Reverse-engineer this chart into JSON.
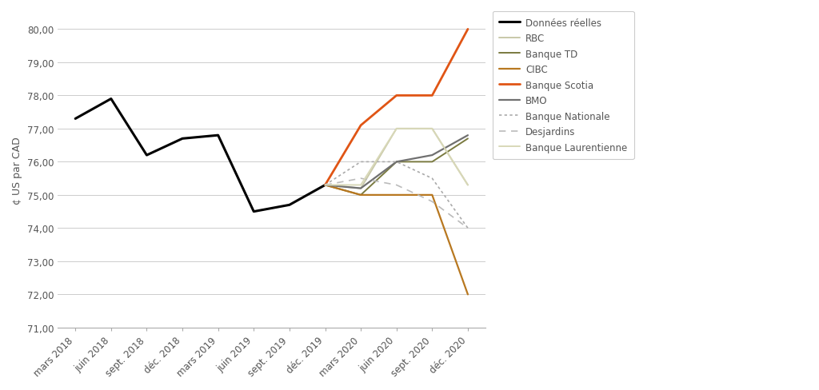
{
  "ylabel": "¢ US par CAD",
  "ylim": [
    71.0,
    80.5
  ],
  "yticks": [
    71.0,
    72.0,
    73.0,
    74.0,
    75.0,
    76.0,
    77.0,
    78.0,
    79.0,
    80.0
  ],
  "x_labels": [
    "mars 2018",
    "juin 2018",
    "sept. 2018",
    "déc. 2018",
    "mars 2019",
    "juin 2019",
    "sept. 2019",
    "déc. 2019",
    "mars 2020",
    "juin 2020",
    "sept. 2020",
    "déc. 2020"
  ],
  "series": {
    "Données réelles": {
      "color": "#000000",
      "linewidth": 2.2,
      "linestyle": "solid",
      "x": [
        0,
        1,
        2,
        3,
        4,
        5,
        6,
        7
      ],
      "y": [
        77.3,
        77.9,
        76.2,
        76.7,
        76.8,
        74.5,
        74.7,
        75.3
      ]
    },
    "RBC": {
      "color": "#c8c8a8",
      "linewidth": 1.4,
      "linestyle": "solid",
      "x": [
        7,
        8,
        9,
        10,
        11
      ],
      "y": [
        75.3,
        75.2,
        77.0,
        77.0,
        75.3
      ]
    },
    "Banque TD": {
      "color": "#7a7a40",
      "linewidth": 1.4,
      "linestyle": "solid",
      "x": [
        7,
        8,
        9,
        10,
        11
      ],
      "y": [
        75.3,
        75.0,
        76.0,
        76.0,
        76.7
      ]
    },
    "CIBC": {
      "color": "#b87820",
      "linewidth": 1.6,
      "linestyle": "solid",
      "x": [
        7,
        8,
        9,
        10,
        11
      ],
      "y": [
        75.3,
        75.0,
        75.0,
        75.0,
        72.0
      ]
    },
    "Banque Scotia": {
      "color": "#e05515",
      "linewidth": 2.0,
      "linestyle": "solid",
      "x": [
        7,
        8,
        9,
        10,
        11
      ],
      "y": [
        75.3,
        77.1,
        78.0,
        78.0,
        80.0
      ]
    },
    "BMO": {
      "color": "#707070",
      "linewidth": 1.6,
      "linestyle": "solid",
      "x": [
        7,
        8,
        9,
        10,
        11
      ],
      "y": [
        75.3,
        75.2,
        76.0,
        76.2,
        76.8
      ]
    },
    "Banque Nationale": {
      "color": "#aaaaaa",
      "linewidth": 1.2,
      "linestyle": "densely_dotted",
      "x": [
        7,
        8,
        9,
        10,
        11
      ],
      "y": [
        75.3,
        76.0,
        76.0,
        75.5,
        74.0
      ]
    },
    "Desjardins": {
      "color": "#bbbbbb",
      "linewidth": 1.2,
      "linestyle": "loosely_dashed",
      "x": [
        7,
        8,
        9,
        10,
        11
      ],
      "y": [
        75.3,
        75.5,
        75.3,
        74.8,
        74.0
      ]
    },
    "Banque Laurentienne": {
      "color": "#d8d8b8",
      "linewidth": 1.4,
      "linestyle": "solid",
      "x": [
        7,
        8,
        9,
        10,
        11
      ],
      "y": [
        75.3,
        75.3,
        77.0,
        77.0,
        75.3
      ]
    }
  },
  "background_color": "#ffffff",
  "plot_bg_color": "#ffffff",
  "grid_color": "#cccccc",
  "font_color": "#555555",
  "spine_color": "#aaaaaa",
  "tick_label_fontsize": 8.5,
  "ylabel_fontsize": 9.0,
  "legend_fontsize": 8.5
}
